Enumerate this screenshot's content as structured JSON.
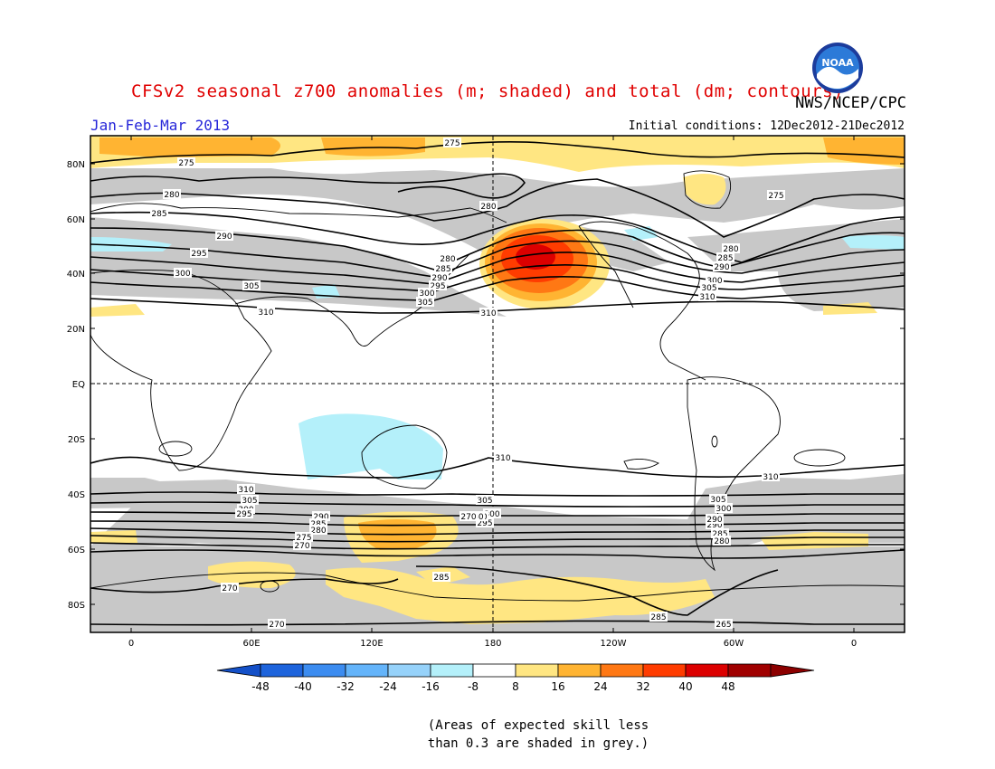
{
  "title": "CFSv2 seasonal z700 anomalies (m; shaded) and total (dm; contours)",
  "agency": "NWS/NCEP/CPC",
  "period": "Jan-Feb-Mar 2013",
  "initial_conditions": "Initial conditions: 12Dec2012-21Dec2012",
  "logo_text": "NOAA",
  "lat_labels": [
    "80N",
    "60N",
    "40N",
    "20N",
    "EQ",
    "20S",
    "40S",
    "60S",
    "80S"
  ],
  "lon_labels": [
    "0",
    "60E",
    "120E",
    "180",
    "120W",
    "60W",
    "0"
  ],
  "colorbar": {
    "ticks": [
      "-48",
      "-40",
      "-32",
      "-24",
      "-16",
      "-8",
      "8",
      "16",
      "24",
      "32",
      "40",
      "48"
    ],
    "colors": [
      "#1e64dc",
      "#3c8cf0",
      "#64b4fa",
      "#96d2fa",
      "#b4f0fa",
      "#ffffff",
      "#ffe682",
      "#ffb432",
      "#ff7814",
      "#ff3c00",
      "#dc0000",
      "#a00000"
    ]
  },
  "skill_note": {
    "line1": "(Areas of expected skill less",
    "line2": "than 0.3 are shaded in grey.)"
  },
  "contour_labels": {
    "north": [
      "275",
      "275",
      "280",
      "285",
      "290",
      "295",
      "300",
      "305",
      "310",
      "280",
      "280",
      "285",
      "290",
      "295",
      "300",
      "305",
      "310",
      "275",
      "280",
      "285",
      "290",
      "300",
      "305",
      "310"
    ],
    "south": [
      "310",
      "310",
      "310",
      "305",
      "300",
      "295",
      "290",
      "285",
      "280",
      "275",
      "270",
      "305",
      "300",
      "295",
      "290",
      "285",
      "280",
      "275",
      "270",
      "285",
      "270",
      "270",
      "285",
      "265",
      "290",
      "285",
      "280",
      "305",
      "300",
      "290"
    ]
  }
}
